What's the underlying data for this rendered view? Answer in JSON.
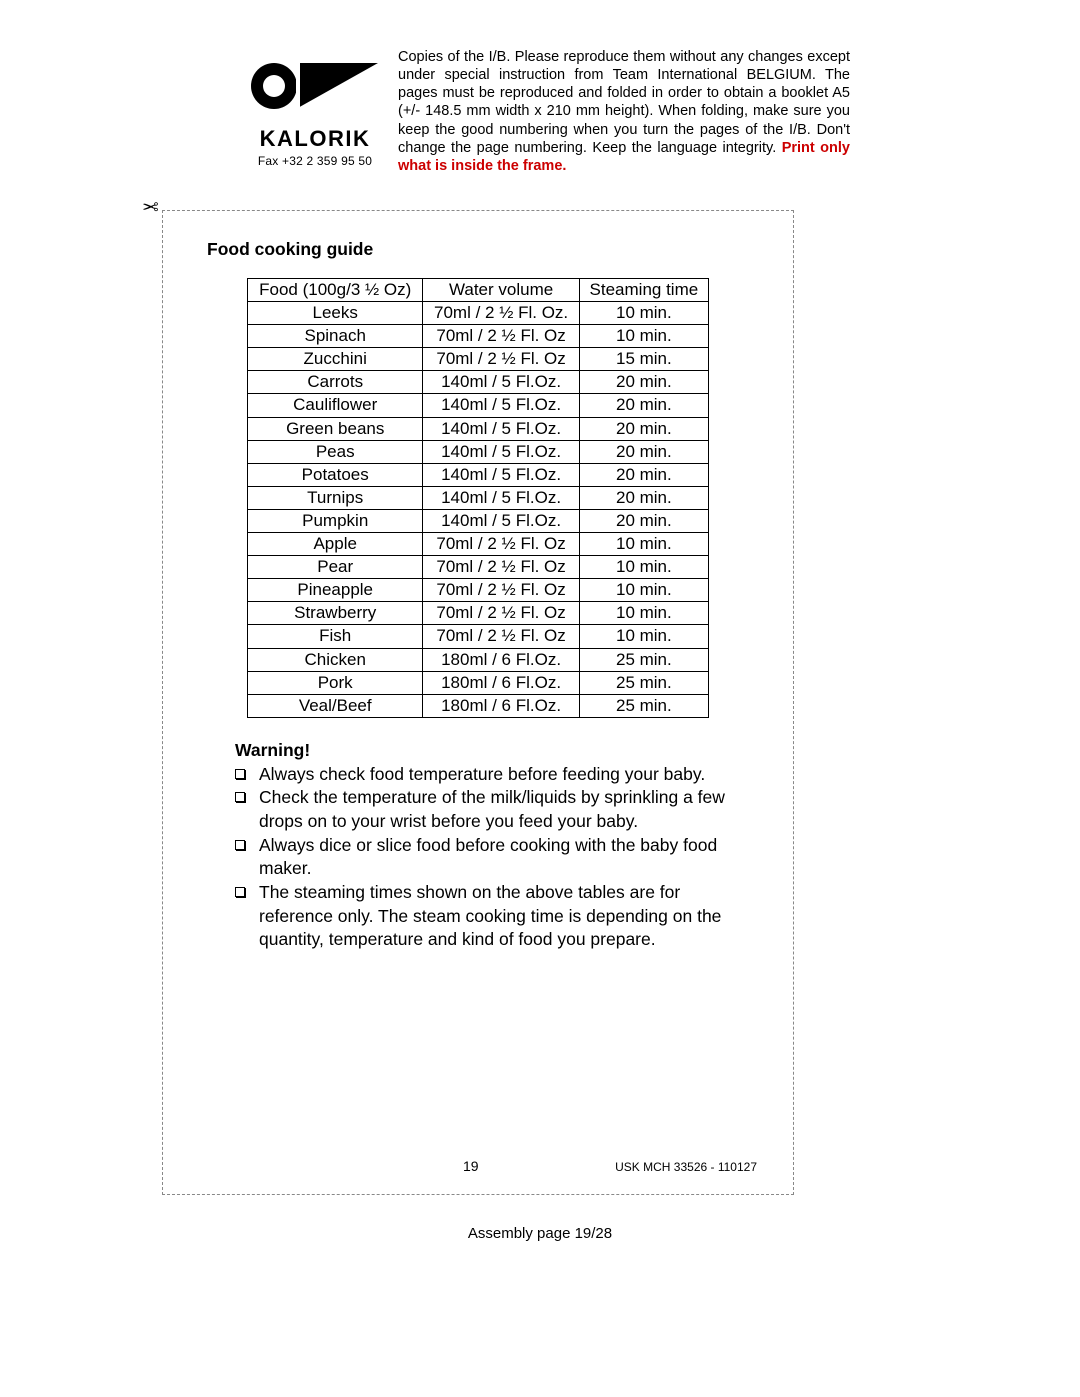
{
  "brand": "KALORIK",
  "fax_label": "Fax +32 2 359 95 50",
  "header_paragraph": "Copies of the I/B. Please reproduce them without any changes except under special instruction from Team International BELGIUM. The pages must be reproduced and folded in order to obtain a booklet A5 (+/- 148.5 mm width x 210 mm height). When folding, make sure you keep the good numbering when you turn the pages of the I/B. Don't change the page numbering. Keep the language integrity. ",
  "header_red": "Print only what is inside the frame.",
  "section_title": "Food cooking guide",
  "table_headers": [
    "Food (100g/3 ½ Oz)",
    "Water volume",
    "Steaming time"
  ],
  "rows": [
    {
      "food": "Leeks",
      "water": "70ml / 2 ½ Fl. Oz.",
      "time": "10 min."
    },
    {
      "food": "Spinach",
      "water": "70ml / 2 ½ Fl. Oz",
      "time": "10 min."
    },
    {
      "food": "Zucchini",
      "water": "70ml / 2 ½ Fl. Oz",
      "time": "15 min."
    },
    {
      "food": "Carrots",
      "water": "140ml / 5 Fl.Oz.",
      "time": "20 min."
    },
    {
      "food": "Cauliflower",
      "water": "140ml / 5 Fl.Oz.",
      "time": "20 min."
    },
    {
      "food": "Green beans",
      "water": "140ml / 5 Fl.Oz.",
      "time": "20 min."
    },
    {
      "food": "Peas",
      "water": "140ml / 5 Fl.Oz.",
      "time": "20 min."
    },
    {
      "food": "Potatoes",
      "water": "140ml / 5 Fl.Oz.",
      "time": "20 min."
    },
    {
      "food": "Turnips",
      "water": "140ml / 5 Fl.Oz.",
      "time": "20 min."
    },
    {
      "food": "Pumpkin",
      "water": "140ml / 5 Fl.Oz.",
      "time": "20 min."
    },
    {
      "food": "Apple",
      "water": "70ml / 2 ½ Fl. Oz",
      "time": "10 min."
    },
    {
      "food": "Pear",
      "water": "70ml / 2 ½ Fl. Oz",
      "time": "10 min."
    },
    {
      "food": "Pineapple",
      "water": "70ml / 2 ½ Fl. Oz",
      "time": "10 min."
    },
    {
      "food": "Strawberry",
      "water": "70ml / 2 ½ Fl. Oz",
      "time": "10 min."
    },
    {
      "food": "Fish",
      "water": "70ml / 2 ½ Fl. Oz",
      "time": "10 min."
    },
    {
      "food": "Chicken",
      "water": "180ml / 6 Fl.Oz.",
      "time": "25 min."
    },
    {
      "food": "Pork",
      "water": "180ml / 6 Fl.Oz.",
      "time": "25 min."
    },
    {
      "food": "Veal/Beef",
      "water": "180ml / 6 Fl.Oz.",
      "time": "25 min."
    }
  ],
  "warning_title": "Warning!",
  "warnings": [
    "Always check food temperature before feeding your baby.",
    "Check the temperature of the milk/liquids by sprinkling a few drops on to your wrist before you feed your baby.",
    "Always dice or slice food before cooking with the baby food maker.",
    "The steaming times shown on the above tables are for reference only.  The steam cooking time is depending on the quantity, temperature and kind of food you prepare."
  ],
  "inner_page_number": "19",
  "product_code": "USK MCH 33526 - 110127",
  "assembly_label": "Assembly page 19/28",
  "colors": {
    "text": "#000000",
    "red": "#cc0000",
    "border": "#888888",
    "background": "#ffffff"
  }
}
